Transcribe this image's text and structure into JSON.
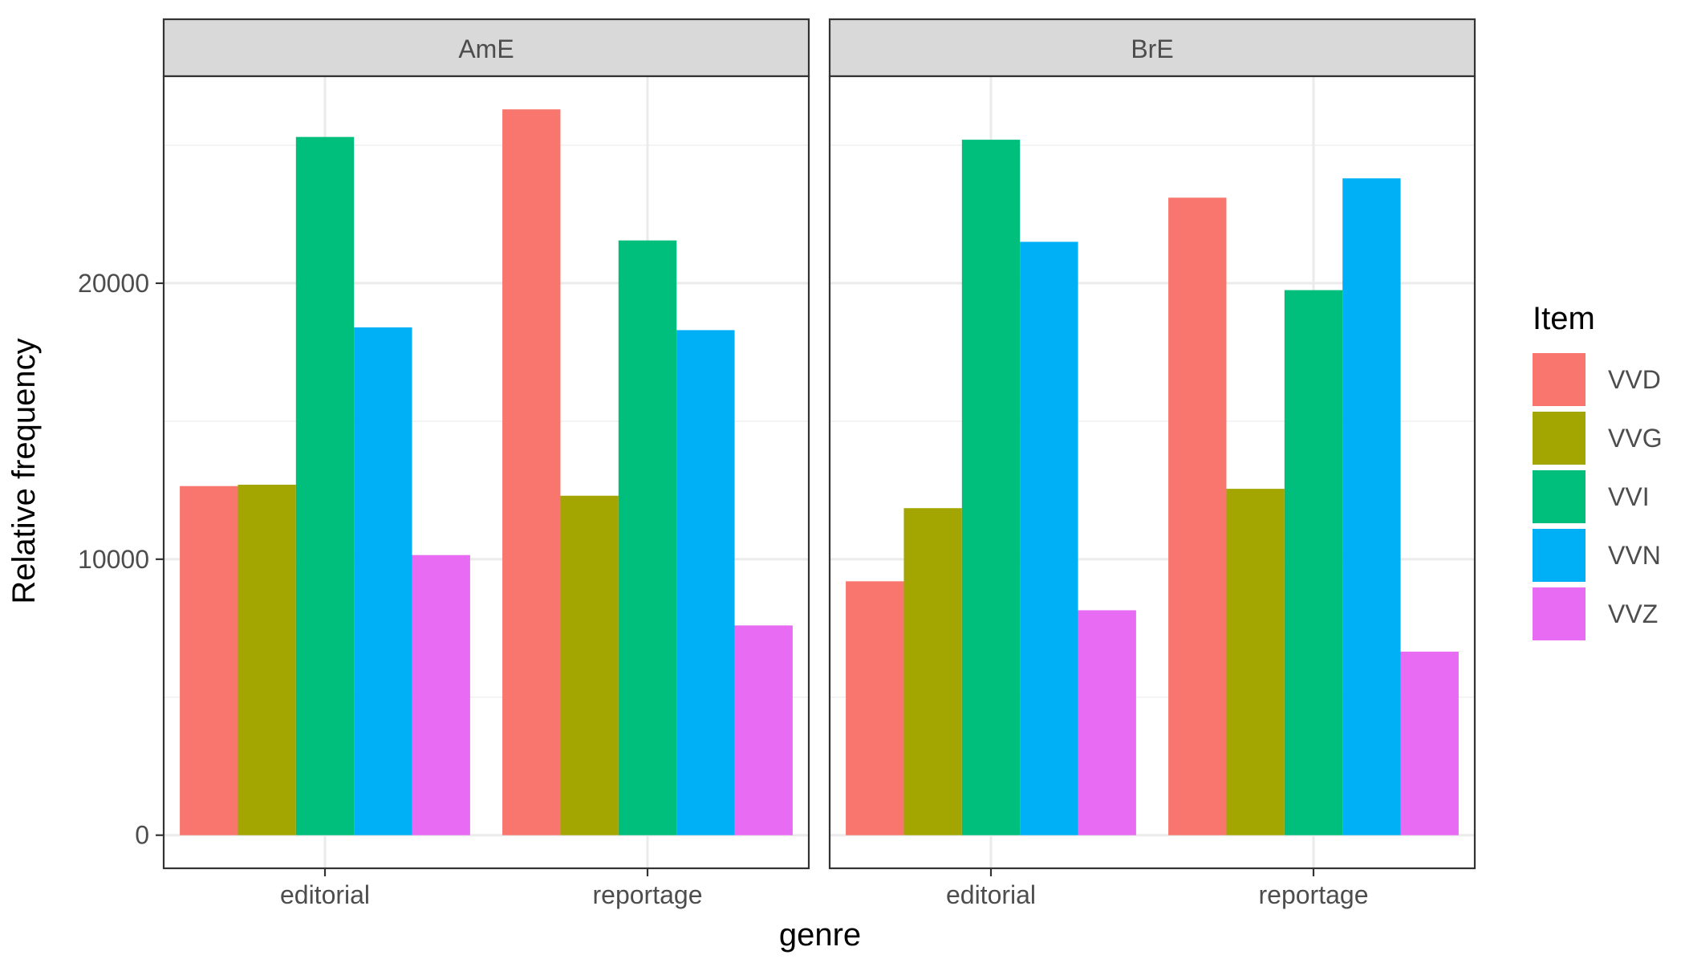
{
  "chart_data": {
    "type": "bar",
    "title": "",
    "xlabel": "genre",
    "ylabel": "Relative frequency",
    "ylim": [
      -1200,
      27500
    ],
    "yticks": [
      0,
      10000,
      20000
    ],
    "grid": true,
    "legend": {
      "title": "Item",
      "position": "right"
    },
    "categories": [
      "editorial",
      "reportage"
    ],
    "series_names": [
      "VVD",
      "VVG",
      "VVI",
      "VVN",
      "VVZ"
    ],
    "colors": [
      "#F8766D",
      "#A3A500",
      "#00BF7D",
      "#00B0F6",
      "#E76BF3"
    ],
    "panels": [
      {
        "name": "AmE",
        "series": [
          {
            "name": "VVD",
            "values": [
              12650,
              26300
            ]
          },
          {
            "name": "VVG",
            "values": [
              12700,
              12300
            ]
          },
          {
            "name": "VVI",
            "values": [
              25300,
              21550
            ]
          },
          {
            "name": "VVN",
            "values": [
              18400,
              18300
            ]
          },
          {
            "name": "VVZ",
            "values": [
              10150,
              7600
            ]
          }
        ]
      },
      {
        "name": "BrE",
        "series": [
          {
            "name": "VVD",
            "values": [
              9200,
              23100
            ]
          },
          {
            "name": "VVG",
            "values": [
              11850,
              12550
            ]
          },
          {
            "name": "VVI",
            "values": [
              25200,
              19750
            ]
          },
          {
            "name": "VVN",
            "values": [
              21500,
              23800
            ]
          },
          {
            "name": "VVZ",
            "values": [
              8150,
              6650
            ]
          }
        ]
      }
    ]
  }
}
